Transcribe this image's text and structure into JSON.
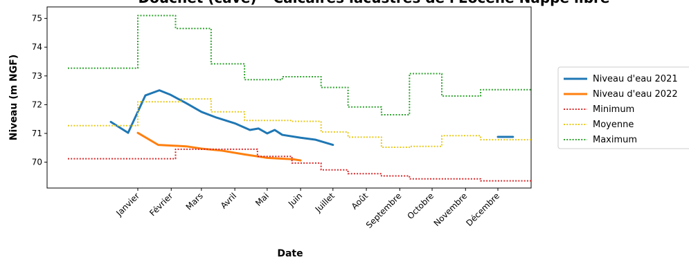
{
  "chart_data": {
    "type": "line",
    "title": "Doucnet (cave) – Calcaires lacustres de l'Eocène Nappe libre",
    "xlabel": "Date",
    "ylabel": "Niveau (m NGF)",
    "ylim": [
      69.1,
      75.4
    ],
    "yticks": [
      70,
      71,
      72,
      73,
      74,
      75
    ],
    "xlim": [
      "12-01",
      "12-31 (end of year)"
    ],
    "xticks": [
      {
        "label": "Janvier",
        "date": "01-01"
      },
      {
        "label": "Février",
        "date": "02-01"
      },
      {
        "label": "Mars",
        "date": "03-01"
      },
      {
        "label": "Avril",
        "date": "04-01"
      },
      {
        "label": "Mai",
        "date": "05-01"
      },
      {
        "label": "Juin",
        "date": "06-01"
      },
      {
        "label": "Juillet",
        "date": "07-01"
      },
      {
        "label": "Août",
        "date": "08-01"
      },
      {
        "label": "Septembre",
        "date": "09-01"
      },
      {
        "label": "Octobre",
        "date": "10-01"
      },
      {
        "label": "Novembre",
        "date": "11-01"
      },
      {
        "label": "Décembre",
        "date": "12-01"
      }
    ],
    "grid": false,
    "legend_position": "right, outside plot",
    "series": [
      {
        "name": "Niveau d'eau 2021",
        "color": "#1f77b4",
        "style": "solid",
        "segments": [
          [
            [
              "12-07",
              71.4
            ],
            [
              "12-23",
              71.02
            ],
            [
              "01-08",
              72.32
            ],
            [
              "01-21",
              72.5
            ],
            [
              "01-31",
              72.35
            ],
            [
              "02-15",
              72.05
            ],
            [
              "03-01",
              71.75
            ],
            [
              "03-15",
              71.55
            ],
            [
              "04-01",
              71.35
            ],
            [
              "04-15",
              71.12
            ],
            [
              "04-23",
              71.17
            ],
            [
              "05-01",
              71.0
            ],
            [
              "05-08",
              71.12
            ],
            [
              "05-15",
              70.95
            ],
            [
              "06-01",
              70.85
            ],
            [
              "06-15",
              70.78
            ],
            [
              "07-01",
              70.6
            ]
          ],
          [
            [
              "12-01",
              70.88
            ],
            [
              "12-15",
              70.88
            ]
          ]
        ]
      },
      {
        "name": "Niveau d'eau 2022",
        "color": "#ff7f0e",
        "style": "solid",
        "segments": [
          [
            [
              "01-01",
              71.02
            ],
            [
              "01-20",
              70.6
            ],
            [
              "02-15",
              70.55
            ],
            [
              "03-01",
              70.47
            ],
            [
              "03-20",
              70.4
            ],
            [
              "04-10",
              70.27
            ],
            [
              "05-01",
              70.15
            ],
            [
              "05-25",
              70.1
            ],
            [
              "06-01",
              70.06
            ]
          ]
        ]
      },
      {
        "name": "Minimum",
        "color": "#d62728",
        "style": "dotted",
        "steps": [
          [
            "12-01",
            70.12
          ],
          [
            "02-05",
            70.45
          ],
          [
            "04-22",
            70.2
          ],
          [
            "05-24",
            69.97
          ],
          [
            "06-20",
            69.73
          ],
          [
            "07-15",
            69.6
          ],
          [
            "08-15",
            69.52
          ],
          [
            "09-10",
            69.42
          ],
          [
            "11-15",
            69.35
          ],
          [
            "12-31",
            69.35
          ]
        ]
      },
      {
        "name": "Moyenne",
        "color": "#e8c81a",
        "style": "dotted",
        "steps": [
          [
            "12-01",
            71.27
          ],
          [
            "01-01",
            72.1
          ],
          [
            "02-10",
            72.2
          ],
          [
            "03-10",
            71.75
          ],
          [
            "04-10",
            71.45
          ],
          [
            "05-24",
            71.42
          ],
          [
            "06-20",
            71.05
          ],
          [
            "07-15",
            70.87
          ],
          [
            "08-15",
            70.52
          ],
          [
            "09-10",
            70.55
          ],
          [
            "10-10",
            70.92
          ],
          [
            "11-15",
            70.78
          ],
          [
            "12-31",
            70.78
          ]
        ]
      },
      {
        "name": "Maximum",
        "color": "#2ca02c",
        "style": "dotted",
        "steps": [
          [
            "12-01",
            73.27
          ],
          [
            "01-01",
            75.1
          ],
          [
            "02-05",
            74.65
          ],
          [
            "03-10",
            73.42
          ],
          [
            "04-10",
            72.87
          ],
          [
            "05-15",
            72.97
          ],
          [
            "06-20",
            72.6
          ],
          [
            "07-15",
            71.92
          ],
          [
            "08-15",
            71.65
          ],
          [
            "09-10",
            73.08
          ],
          [
            "10-10",
            72.3
          ],
          [
            "11-15",
            72.52
          ],
          [
            "12-31",
            72.52
          ]
        ]
      }
    ]
  }
}
